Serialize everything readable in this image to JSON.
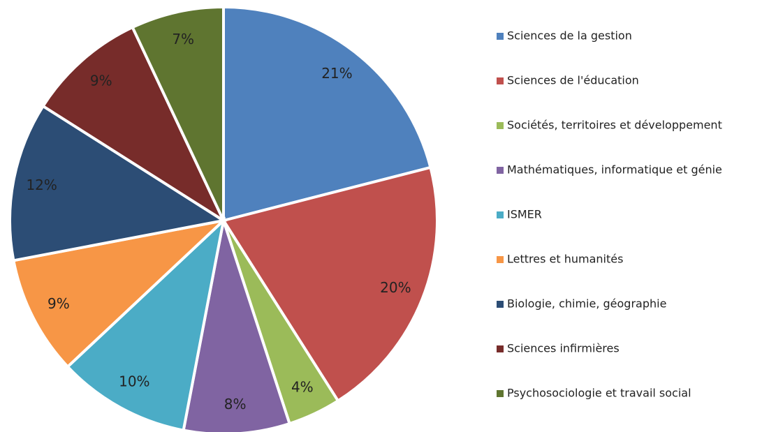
{
  "chart_data": {
    "type": "pie",
    "categories": [
      "Sciences de la gestion",
      "Sciences de l'éducation",
      "Sociétés, territoires et développement",
      "Mathématiques, informatique et génie",
      "ISMER",
      "Lettres et humanités",
      "Biologie, chimie, géographie",
      "Sciences infirmières",
      "Psychosociologie et travail social"
    ],
    "values": [
      21,
      20,
      4,
      8,
      10,
      9,
      12,
      9,
      7
    ],
    "value_labels": [
      "21%",
      "20%",
      "4%",
      "8%",
      "10%",
      "9%",
      "12%",
      "9%",
      "7%"
    ],
    "colors": [
      "#4f81bd",
      "#c0504d",
      "#9bbb59",
      "#8064a2",
      "#4bacc6",
      "#f79646",
      "#2c4d75",
      "#772c2a",
      "#5f7530"
    ],
    "legend": "right"
  }
}
